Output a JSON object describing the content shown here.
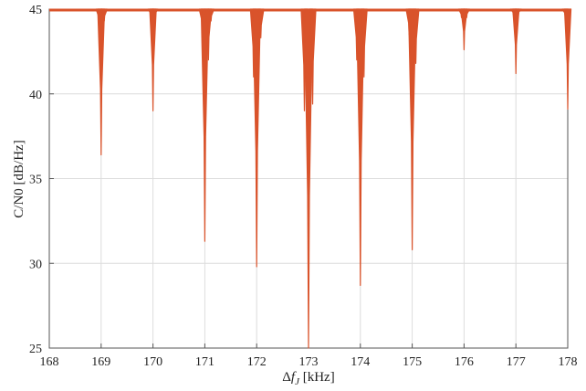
{
  "chart_data": {
    "type": "line",
    "xlabel": "Δf_J [kHz]",
    "xlabel_main": "Δ",
    "xlabel_var": "f",
    "xlabel_sub": "J",
    "xlabel_unit": " [kHz]",
    "ylabel": "C/N0 [dB/Hz]",
    "xlim": [
      168,
      178
    ],
    "ylim": [
      25,
      45
    ],
    "xticks": [
      "168",
      "169",
      "170",
      "171",
      "172",
      "173",
      "174",
      "175",
      "176",
      "177",
      "178"
    ],
    "yticks": [
      "25",
      "30",
      "35",
      "40",
      "45"
    ],
    "grid": true,
    "baseline": 45,
    "series": [
      {
        "color": "#d9532b",
        "notches": [
          {
            "x": 168.96,
            "min": 44.2
          },
          {
            "x": 169.0,
            "min": 36.4
          },
          {
            "x": 169.06,
            "min": 44.3
          },
          {
            "x": 169.96,
            "min": 44.6
          },
          {
            "x": 170.0,
            "min": 39.0
          },
          {
            "x": 170.04,
            "min": 44.6
          },
          {
            "x": 170.95,
            "min": 43.8
          },
          {
            "x": 171.0,
            "min": 31.3
          },
          {
            "x": 171.07,
            "min": 42.0
          },
          {
            "x": 171.12,
            "min": 44.3
          },
          {
            "x": 171.94,
            "min": 41.0
          },
          {
            "x": 172.0,
            "min": 29.8
          },
          {
            "x": 172.08,
            "min": 43.3
          },
          {
            "x": 172.92,
            "min": 39.0
          },
          {
            "x": 173.0,
            "min": 25.0
          },
          {
            "x": 173.08,
            "min": 39.4
          },
          {
            "x": 173.93,
            "min": 42.0
          },
          {
            "x": 174.0,
            "min": 28.7
          },
          {
            "x": 174.07,
            "min": 41.0
          },
          {
            "x": 174.94,
            "min": 43.5
          },
          {
            "x": 175.0,
            "min": 30.8
          },
          {
            "x": 175.07,
            "min": 41.8
          },
          {
            "x": 175.95,
            "min": 44.5
          },
          {
            "x": 176.0,
            "min": 42.6
          },
          {
            "x": 176.05,
            "min": 44.5
          },
          {
            "x": 176.95,
            "min": 44.7
          },
          {
            "x": 177.0,
            "min": 41.2
          },
          {
            "x": 177.05,
            "min": 44.7
          },
          {
            "x": 177.95,
            "min": 44.6
          },
          {
            "x": 178.0,
            "min": 39.1
          }
        ]
      }
    ]
  }
}
